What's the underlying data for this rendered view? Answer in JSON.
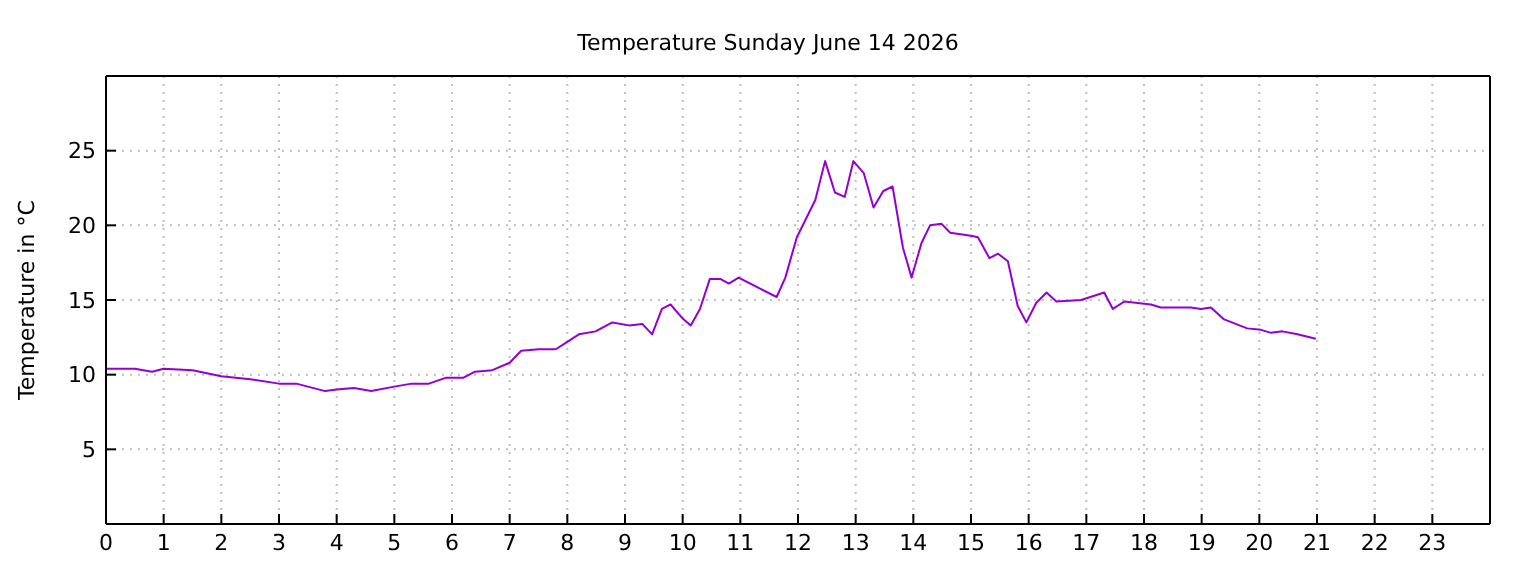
{
  "chart_data": {
    "type": "line",
    "title": "Temperature Sunday June 14 2026",
    "ylabel": "Temperature in °C",
    "x": [
      0,
      0.5,
      0.8,
      1,
      1.5,
      2,
      2.5,
      3,
      3.3,
      3.8,
      4,
      4.3,
      4.6,
      5,
      5.3,
      5.6,
      5.9,
      6.2,
      6.4,
      6.7,
      7,
      7.2,
      7.5,
      7.8,
      8,
      8.2,
      8.49,
      8.78,
      9.07,
      9.3,
      9.47,
      9.64,
      9.79,
      9.99,
      10.14,
      10.3,
      10.47,
      10.66,
      10.8,
      10.97,
      11.63,
      11.78,
      11.98,
      12.3,
      12.47,
      12.64,
      12.81,
      12.96,
      13.14,
      13.31,
      13.48,
      13.64,
      13.82,
      13.97,
      14.14,
      14.29,
      14.49,
      14.64,
      15,
      15.12,
      15.32,
      15.47,
      15.64,
      15.81,
      15.96,
      16.13,
      16.31,
      16.48,
      16.91,
      17.31,
      17.46,
      17.66,
      18.12,
      18.29,
      18.81,
      18.99,
      19.16,
      19.39,
      19.79,
      20.03,
      20.2,
      20.4,
      20.66,
      20.98
    ],
    "series": [
      {
        "color": "#9400d3",
        "values": [
          10.4,
          10.4,
          10.2,
          10.4,
          10.3,
          9.9,
          9.7,
          9.4,
          9.4,
          8.9,
          9.0,
          9.1,
          8.9,
          9.2,
          9.4,
          9.4,
          9.8,
          9.8,
          10.2,
          10.3,
          10.8,
          11.6,
          11.7,
          11.7,
          12.2,
          12.7,
          12.9,
          13.5,
          13.3,
          13.4,
          12.7,
          14.4,
          14.7,
          13.8,
          13.3,
          14.4,
          16.4,
          16.4,
          16.1,
          16.5,
          15.2,
          16.5,
          19.2,
          21.7,
          24.3,
          22.2,
          21.9,
          24.3,
          23.5,
          21.2,
          22.3,
          22.6,
          18.5,
          16.5,
          18.8,
          20.0,
          20.1,
          19.5,
          19.3,
          19.2,
          17.8,
          18.1,
          17.6,
          14.6,
          13.5,
          14.8,
          15.5,
          14.9,
          15.0,
          15.5,
          14.4,
          14.9,
          14.7,
          14.5,
          14.5,
          14.4,
          14.5,
          13.7,
          13.1,
          13.0,
          12.8,
          12.9,
          12.7,
          12.4
        ]
      }
    ],
    "xlim": [
      0,
      24
    ],
    "xticks": [
      0,
      1,
      2,
      3,
      4,
      5,
      6,
      7,
      8,
      9,
      10,
      11,
      12,
      13,
      14,
      15,
      16,
      17,
      18,
      19,
      20,
      21,
      22,
      23
    ],
    "ylim": [
      0,
      30
    ],
    "yticks": [
      5,
      10,
      15,
      20,
      25
    ],
    "grid": true
  }
}
